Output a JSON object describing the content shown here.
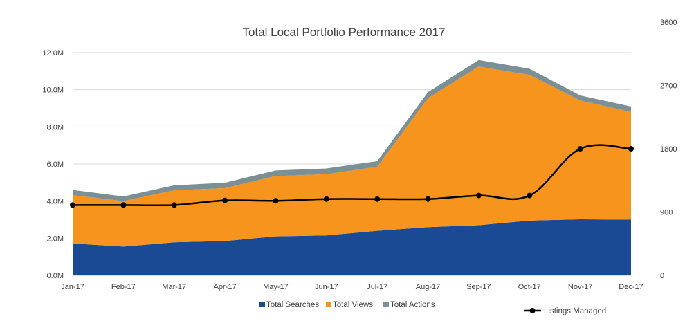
{
  "chart_data": {
    "type": "area",
    "title": "Total Local Portfolio Performance 2017",
    "categories": [
      "Jan-17",
      "Feb-17",
      "Mar-17",
      "Apr-17",
      "May-17",
      "Jun-17",
      "Jul-17",
      "Aug-17",
      "Sep-17",
      "Oct-17",
      "Nov-17",
      "Dec-17"
    ],
    "stacked": true,
    "series": [
      {
        "name": "Total Searches",
        "color": "#1a4a94",
        "values": [
          1.72,
          1.55,
          1.78,
          1.85,
          2.1,
          2.15,
          2.4,
          2.6,
          2.7,
          2.95,
          3.02,
          3.0
        ]
      },
      {
        "name": "Total Views",
        "color": "#f7941d",
        "values": [
          2.6,
          2.45,
          2.8,
          2.85,
          3.25,
          3.3,
          3.45,
          6.95,
          8.55,
          7.85,
          6.4,
          5.8
        ]
      },
      {
        "name": "Total Actions",
        "color": "#7b9096",
        "values": [
          0.28,
          0.25,
          0.27,
          0.29,
          0.3,
          0.31,
          0.3,
          0.32,
          0.35,
          0.33,
          0.27,
          0.3
        ]
      }
    ],
    "line_series": {
      "name": "Listings Managed",
      "color": "#000000",
      "axis": "right",
      "values": [
        1000,
        1000,
        1000,
        1065,
        1060,
        1085,
        1085,
        1085,
        1135,
        1135,
        1800,
        1800
      ]
    },
    "y_left": {
      "ylim": [
        0,
        12
      ],
      "ticks": [
        0,
        2,
        4,
        6,
        8,
        10,
        12
      ],
      "tick_labels": [
        "0.0M",
        "2.0M",
        "4.0M",
        "6.0M",
        "8.0M",
        "10.0M",
        "12.0M"
      ]
    },
    "y_right": {
      "ylim": [
        0,
        3600
      ],
      "ticks": [
        0,
        900,
        1800,
        2700,
        3600
      ],
      "tick_labels": [
        "0",
        "900",
        "1800",
        "2700",
        "3600"
      ]
    },
    "grid": true,
    "legend_position": "bottom"
  }
}
